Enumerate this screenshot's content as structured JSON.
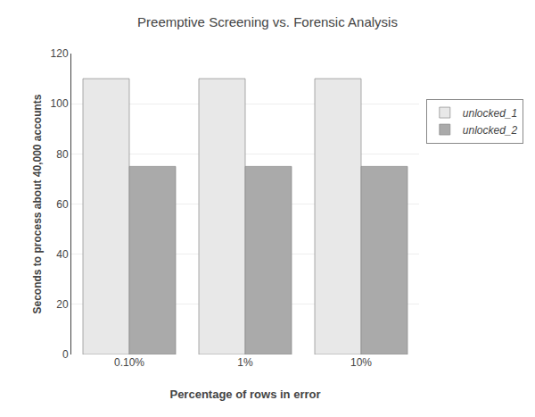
{
  "chart_data": {
    "type": "bar",
    "title": "Preemptive Screening vs. Forensic Analysis",
    "xlabel": "Percentage of rows in error",
    "ylabel": "Seconds to process about 40,000 accounts",
    "categories": [
      "0.10%",
      "1%",
      "10%"
    ],
    "series": [
      {
        "name": "unlocked_1",
        "color": "#e8e8e8",
        "values": [
          110,
          110,
          110
        ]
      },
      {
        "name": "unlocked_2",
        "color": "#aaaaaa",
        "values": [
          75,
          75,
          75
        ]
      }
    ],
    "ylim": [
      0,
      120
    ],
    "yticks": [
      0,
      20,
      40,
      60,
      80,
      100,
      120
    ],
    "grid": true,
    "legend": "right"
  }
}
